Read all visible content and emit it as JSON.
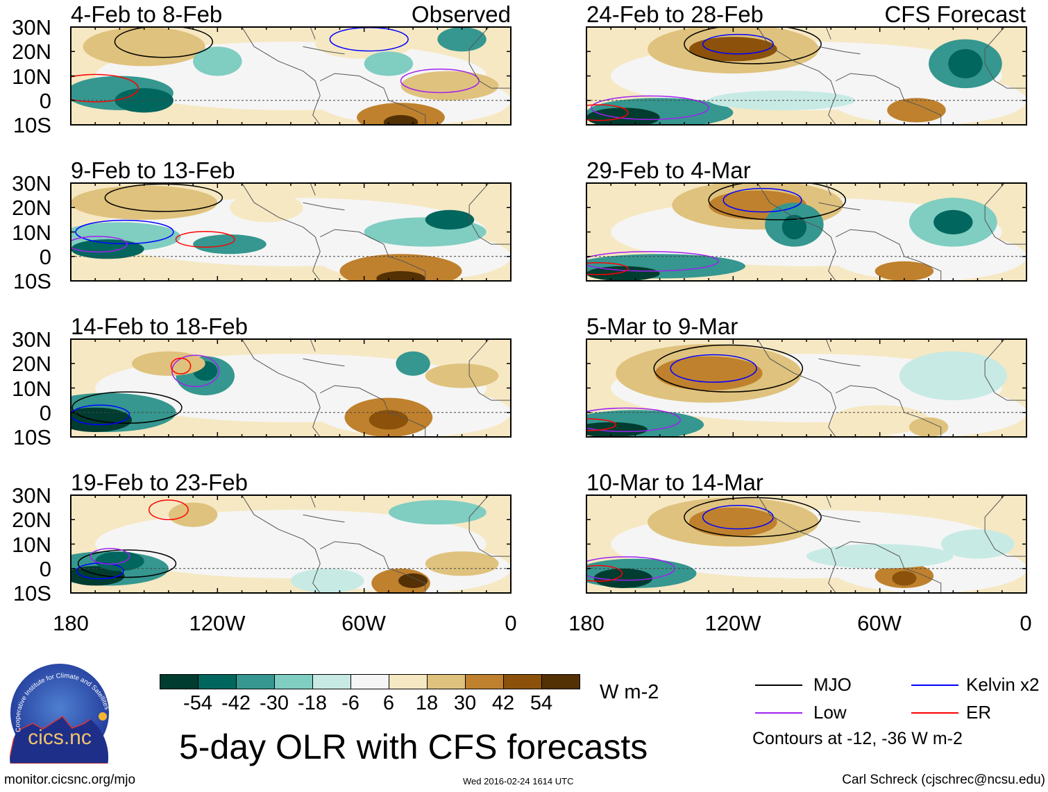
{
  "panels": {
    "left_header": "Observed",
    "right_header": "CFS Forecast",
    "left": [
      "4-Feb to 8-Feb",
      "9-Feb to 13-Feb",
      "14-Feb to 18-Feb",
      "19-Feb to 23-Feb"
    ],
    "right": [
      "24-Feb to 28-Feb",
      "29-Feb to 4-Mar",
      "5-Mar to 9-Mar",
      "10-Mar to 14-Mar"
    ]
  },
  "chart_data": {
    "type": "heatmap",
    "title": "5-day OLR with CFS forecasts",
    "lat_ticks": [
      "30N",
      "20N",
      "10N",
      "0",
      "10S"
    ],
    "lon_ticks": [
      "180",
      "120W",
      "60W",
      "0"
    ],
    "colorbar": {
      "units": "W m-2",
      "levels": [
        "-54",
        "-42",
        "-30",
        "-18",
        "-6",
        "6",
        "18",
        "30",
        "42",
        "54"
      ],
      "colors": [
        "#003c30",
        "#01665e",
        "#35978f",
        "#80cdc1",
        "#c7eae5",
        "#f5f5f5",
        "#f6e8c3",
        "#dfc27d",
        "#bf812d",
        "#8c510a",
        "#543005"
      ]
    },
    "legend": [
      {
        "label": "MJO",
        "color": "#000000"
      },
      {
        "label": "Kelvin x2",
        "color": "#0000ff"
      },
      {
        "label": "Low",
        "color": "#a020f0"
      },
      {
        "label": "ER",
        "color": "#ff0000"
      }
    ],
    "contour_note": "Contours at -12, -36 W m-2"
  },
  "footer": {
    "url": "monitor.cicsnc.org/mjo",
    "timestamp": "Wed 2016-02-24 1614 UTC",
    "author": "Carl Schreck (cjschrec@ncsu.edu)",
    "logo_text": "cics.nc",
    "logo_ring": "Cooperative Institute for Climate and Satellites"
  }
}
